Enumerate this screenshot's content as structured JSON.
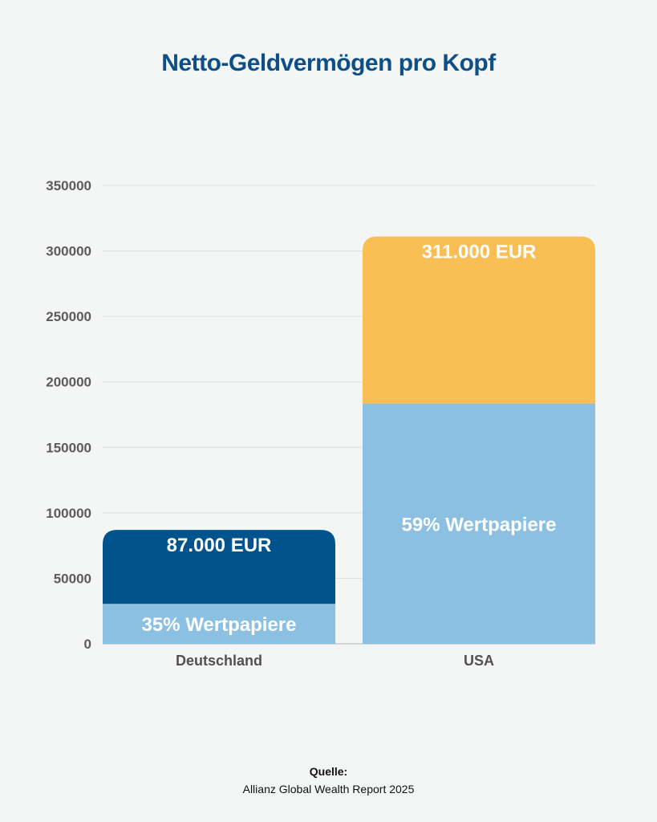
{
  "chart_data": {
    "type": "bar",
    "title": "Netto-Geldvermögen pro Kopf",
    "categories": [
      "Deutschland",
      "USA"
    ],
    "ylim": [
      0,
      350000
    ],
    "yticks": [
      0,
      50000,
      100000,
      150000,
      200000,
      250000,
      300000,
      350000
    ],
    "grid": true,
    "series": [
      {
        "values": [
          30450,
          183490
        ],
        "colors": [
          "#8cc0e3",
          "#8cc0e3"
        ]
      },
      {
        "values": [
          56550,
          127510
        ],
        "colors": [
          "#00538c",
          "#f9be54"
        ]
      }
    ],
    "total_labels": [
      "87.000 EUR",
      "311.000 EUR"
    ],
    "share_labels": [
      "35% Wertpapiere",
      "59% Wertpapiere"
    ]
  },
  "source": {
    "title": "Quelle:",
    "text": "Allianz Global Wealth Report 2025"
  }
}
